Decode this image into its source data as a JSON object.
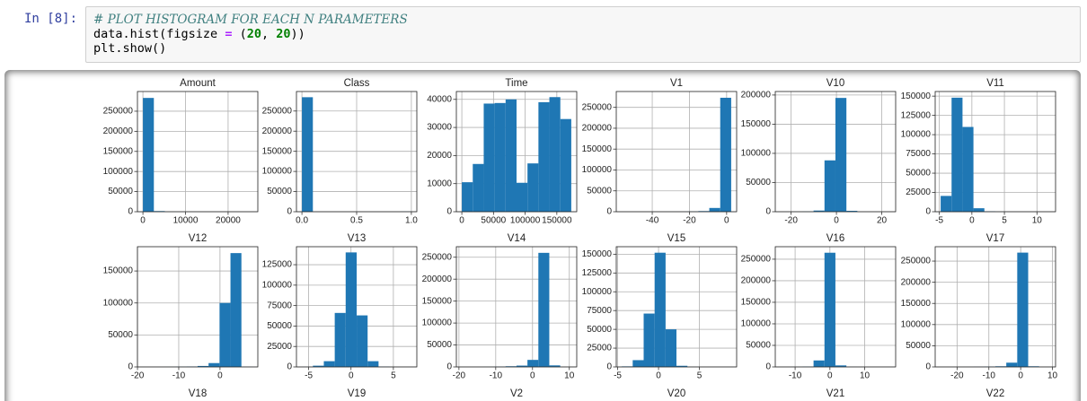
{
  "cell": {
    "prompt": "In [8]:",
    "code": [
      [
        "# PLOT HISTOGRAM FOR EACH N PARAMETERS"
      ],
      [
        "data.hist(figsize ",
        "=",
        " (",
        "20",
        ", ",
        "20",
        "))"
      ],
      [
        "plt.show()"
      ]
    ]
  },
  "chart_data": [
    {
      "type": "histogram",
      "title": "Amount",
      "color": "#1f77b4",
      "grid": true,
      "bins": [
        0,
        2569,
        5138,
        7707,
        10276,
        12846,
        15415,
        17984,
        20553,
        23122,
        25691
      ],
      "counts": [
        283000,
        1600,
        150,
        40,
        10,
        4,
        2,
        0,
        1,
        1
      ],
      "xlim": [
        -1285,
        26976
      ],
      "xticks": [
        0,
        10000,
        20000
      ],
      "ylim": [
        0,
        299000
      ],
      "yticks": [
        0,
        50000,
        100000,
        150000,
        200000,
        250000
      ]
    },
    {
      "type": "histogram",
      "title": "Class",
      "color": "#1f77b4",
      "grid": true,
      "bins": [
        0,
        0.1,
        0.2,
        0.3,
        0.4,
        0.5,
        0.6,
        0.7,
        0.8,
        0.9,
        1.0
      ],
      "counts": [
        284315,
        0,
        0,
        0,
        0,
        0,
        0,
        0,
        0,
        492
      ],
      "xlim": [
        -0.05,
        1.05
      ],
      "xticks": [
        {
          "value": 0,
          "label": "0.0"
        },
        {
          "value": 0.5,
          "label": "0.5"
        },
        {
          "value": 1,
          "label": "1.0"
        }
      ],
      "ylim": [
        0,
        298500
      ],
      "yticks": [
        0,
        50000,
        100000,
        150000,
        200000,
        250000
      ]
    },
    {
      "type": "histogram",
      "title": "Time",
      "color": "#1f77b4",
      "grid": true,
      "bins": [
        0,
        17279,
        34558,
        51838,
        69117,
        86396,
        103675,
        120954,
        138234,
        155513,
        172792
      ],
      "counts": [
        10500,
        17000,
        38500,
        38700,
        40000,
        10300,
        17200,
        39000,
        40800,
        33000
      ],
      "xlim": [
        -8640,
        181432
      ],
      "xticks": [
        0,
        50000,
        100000,
        150000
      ],
      "ylim": [
        0,
        42800
      ],
      "yticks": [
        0,
        10000,
        20000,
        30000,
        40000
      ]
    },
    {
      "type": "histogram",
      "title": "V1",
      "color": "#1f77b4",
      "grid": true,
      "bins": [
        -56.41,
        -50.52,
        -44.64,
        -38.75,
        -32.87,
        -26.98,
        -21.09,
        -15.21,
        -9.32,
        -3.44,
        2.45
      ],
      "counts": [
        10,
        10,
        20,
        50,
        100,
        200,
        500,
        1500,
        9000,
        273000
      ],
      "xlim": [
        -59.35,
        5.39
      ],
      "xticks": [
        -40,
        -20,
        0
      ],
      "ylim": [
        0,
        288000
      ],
      "yticks": [
        0,
        50000,
        100000,
        150000,
        200000,
        250000
      ]
    },
    {
      "type": "histogram",
      "title": "V10",
      "color": "#1f77b4",
      "grid": true,
      "bins": [
        -24.59,
        -19.76,
        -14.93,
        -10.1,
        -5.27,
        -0.44,
        4.4,
        9.23,
        14.06,
        18.89,
        23.72
      ],
      "counts": [
        10,
        80,
        300,
        2000,
        88000,
        195000,
        1500,
        50,
        20,
        5
      ],
      "xlim": [
        -27.0,
        26.14
      ],
      "xticks": [
        -20,
        0,
        20
      ],
      "ylim": [
        0,
        206000
      ],
      "yticks": [
        0,
        50000,
        100000,
        150000,
        200000
      ]
    },
    {
      "type": "histogram",
      "title": "V11",
      "color": "#1f77b4",
      "grid": true,
      "bins": [
        -4.8,
        -3.12,
        -1.44,
        0.24,
        1.92,
        3.6,
        5.29,
        6.97,
        8.65,
        10.33,
        12.02
      ],
      "counts": [
        20500,
        148000,
        110000,
        4500,
        500,
        50,
        10,
        5,
        2,
        1
      ],
      "xlim": [
        -5.64,
        12.86
      ],
      "xticks": [
        -5,
        0,
        5,
        10
      ],
      "ylim": [
        0,
        156000
      ],
      "yticks": [
        0,
        25000,
        50000,
        75000,
        100000,
        125000,
        150000
      ]
    },
    {
      "type": "histogram",
      "title": "V12",
      "color": "#1f77b4",
      "grid": true,
      "bins": [
        -18.68,
        -16.03,
        -13.38,
        -10.72,
        -8.07,
        -5.42,
        -2.77,
        -0.11,
        2.54,
        5.19,
        7.85
      ],
      "counts": [
        20,
        50,
        100,
        300,
        600,
        1500,
        6000,
        100000,
        178000,
        200
      ],
      "xlim": [
        -20.01,
        9.17
      ],
      "xticks": [
        -20,
        -10,
        0
      ],
      "ylim": [
        0,
        188000
      ],
      "yticks": [
        0,
        50000,
        100000,
        150000
      ]
    },
    {
      "type": "histogram",
      "title": "V13",
      "color": "#1f77b4",
      "grid": true,
      "bins": [
        -5.79,
        -4.5,
        -3.21,
        -1.92,
        -0.63,
        0.67,
        1.96,
        3.25,
        4.54,
        5.83,
        7.13
      ],
      "counts": [
        100,
        1500,
        7000,
        66000,
        140000,
        63000,
        7000,
        300,
        20,
        2
      ],
      "xlim": [
        -6.44,
        7.77
      ],
      "xticks": [
        -5,
        0,
        5
      ],
      "ylim": [
        0,
        147000
      ],
      "yticks": [
        0,
        25000,
        50000,
        75000,
        100000,
        125000
      ]
    },
    {
      "type": "histogram",
      "title": "V14",
      "color": "#1f77b4",
      "grid": true,
      "bins": [
        -19.21,
        -16.24,
        -13.27,
        -10.29,
        -7.32,
        -4.35,
        -1.38,
        1.59,
        4.56,
        7.53,
        10.53
      ],
      "counts": [
        20,
        50,
        150,
        400,
        1500,
        3000,
        16000,
        260000,
        3500,
        50
      ],
      "xlim": [
        -20.7,
        12.02
      ],
      "xticks": [
        -20,
        -10,
        0,
        10
      ],
      "ylim": [
        0,
        274000
      ],
      "yticks": [
        0,
        50000,
        100000,
        150000,
        200000,
        250000
      ]
    },
    {
      "type": "histogram",
      "title": "V15",
      "color": "#1f77b4",
      "grid": true,
      "bins": [
        -4.5,
        -3.16,
        -1.82,
        -0.48,
        0.86,
        2.19,
        3.53,
        4.87,
        6.21,
        7.55,
        8.88
      ],
      "counts": [
        700,
        9000,
        71000,
        152000,
        50000,
        1500,
        100,
        20,
        5,
        2
      ],
      "xlim": [
        -5.17,
        9.55
      ],
      "xticks": [
        -5,
        0,
        5
      ],
      "ylim": [
        0,
        160000
      ],
      "yticks": [
        0,
        25000,
        50000,
        75000,
        100000,
        125000,
        150000
      ]
    },
    {
      "type": "histogram",
      "title": "V16",
      "color": "#1f77b4",
      "grid": true,
      "bins": [
        -14.13,
        -10.99,
        -7.85,
        -4.7,
        -1.56,
        1.58,
        4.73,
        7.87,
        11.01,
        14.16,
        17.32
      ],
      "counts": [
        20,
        100,
        500,
        15000,
        265000,
        3500,
        200,
        20,
        5,
        2
      ],
      "xlim": [
        -15.7,
        18.89
      ],
      "xticks": [
        -10,
        0,
        10
      ],
      "ylim": [
        0,
        279000
      ],
      "yticks": [
        0,
        50000,
        100000,
        150000,
        200000,
        250000
      ]
    },
    {
      "type": "histogram",
      "title": "V17",
      "color": "#1f77b4",
      "grid": true,
      "bins": [
        -25.16,
        -21.72,
        -18.28,
        -14.84,
        -11.4,
        -7.96,
        -4.52,
        -1.08,
        2.36,
        5.8,
        9.25
      ],
      "counts": [
        20,
        50,
        100,
        300,
        600,
        1500,
        10000,
        270000,
        1500,
        50
      ],
      "xlim": [
        -26.88,
        10.97
      ],
      "xticks": [
        -20,
        -10,
        0,
        10
      ],
      "ylim": [
        0,
        284000
      ],
      "yticks": [
        0,
        50000,
        100000,
        150000,
        200000,
        250000
      ]
    }
  ],
  "next_row_titles": [
    "V18",
    "V19",
    "V2",
    "V20",
    "V21",
    "V22"
  ]
}
